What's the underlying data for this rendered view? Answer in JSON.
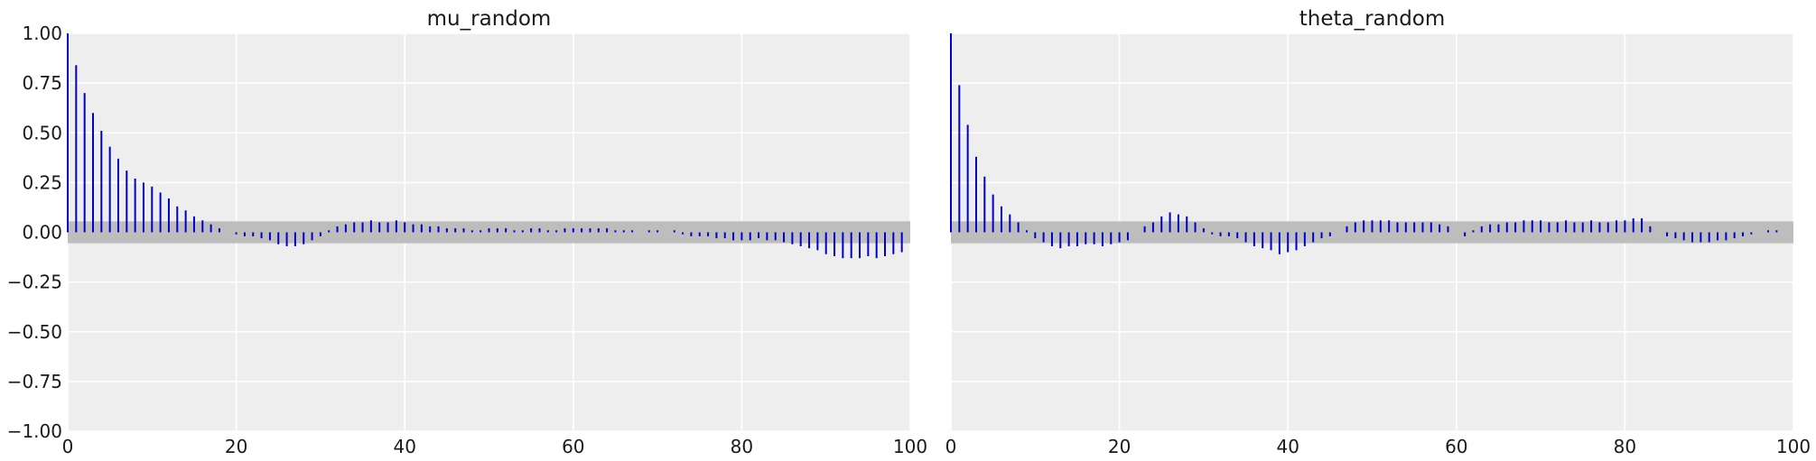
{
  "chart_data": [
    {
      "type": "bar",
      "title": "mu_random",
      "xlabel": "",
      "ylabel": "",
      "xlim": [
        0,
        100
      ],
      "ylim": [
        -1.0,
        1.0
      ],
      "xticks": [
        "0",
        "20",
        "40",
        "60",
        "80",
        "100"
      ],
      "yticks": [
        "1.00",
        "0.75",
        "0.50",
        "0.25",
        "0.00",
        "−0.25",
        "−0.50",
        "−0.75",
        "−1.00"
      ],
      "grid": true,
      "confidence_band": [
        -0.055,
        0.055
      ],
      "colors": {
        "stem": "#0000cc",
        "band": "#bdbdbd",
        "background": "#eeeeee"
      },
      "x": [
        0,
        1,
        2,
        3,
        4,
        5,
        6,
        7,
        8,
        9,
        10,
        11,
        12,
        13,
        14,
        15,
        16,
        17,
        18,
        19,
        20,
        21,
        22,
        23,
        24,
        25,
        26,
        27,
        28,
        29,
        30,
        31,
        32,
        33,
        34,
        35,
        36,
        37,
        38,
        39,
        40,
        41,
        42,
        43,
        44,
        45,
        46,
        47,
        48,
        49,
        50,
        51,
        52,
        53,
        54,
        55,
        56,
        57,
        58,
        59,
        60,
        61,
        62,
        63,
        64,
        65,
        66,
        67,
        68,
        69,
        70,
        71,
        72,
        73,
        74,
        75,
        76,
        77,
        78,
        79,
        80,
        81,
        82,
        83,
        84,
        85,
        86,
        87,
        88,
        89,
        90,
        91,
        92,
        93,
        94,
        95,
        96,
        97,
        98,
        99
      ],
      "values": [
        1.0,
        0.84,
        0.7,
        0.6,
        0.51,
        0.43,
        0.37,
        0.31,
        0.27,
        0.25,
        0.23,
        0.2,
        0.17,
        0.13,
        0.11,
        0.08,
        0.06,
        0.04,
        0.02,
        0.0,
        -0.01,
        -0.02,
        -0.02,
        -0.03,
        -0.04,
        -0.06,
        -0.07,
        -0.07,
        -0.06,
        -0.04,
        -0.02,
        0.01,
        0.03,
        0.04,
        0.05,
        0.05,
        0.06,
        0.05,
        0.05,
        0.06,
        0.05,
        0.04,
        0.04,
        0.03,
        0.03,
        0.02,
        0.02,
        0.02,
        0.01,
        0.01,
        0.02,
        0.02,
        0.02,
        0.01,
        0.01,
        0.02,
        0.02,
        0.01,
        0.01,
        0.02,
        0.02,
        0.02,
        0.02,
        0.02,
        0.02,
        0.01,
        0.01,
        0.01,
        0.0,
        0.01,
        0.01,
        0.0,
        0.01,
        -0.01,
        -0.02,
        -0.02,
        -0.02,
        -0.03,
        -0.03,
        -0.04,
        -0.04,
        -0.04,
        -0.03,
        -0.04,
        -0.04,
        -0.05,
        -0.06,
        -0.07,
        -0.08,
        -0.09,
        -0.11,
        -0.12,
        -0.13,
        -0.13,
        -0.13,
        -0.12,
        -0.13,
        -0.12,
        -0.11,
        -0.1
      ]
    },
    {
      "type": "bar",
      "title": "theta_random",
      "xlabel": "",
      "ylabel": "",
      "xlim": [
        0,
        100
      ],
      "ylim": [
        -1.0,
        1.0
      ],
      "xticks": [
        "0",
        "20",
        "40",
        "60",
        "80",
        "100"
      ],
      "yticks": [],
      "grid": true,
      "confidence_band": [
        -0.055,
        0.055
      ],
      "colors": {
        "stem": "#0000cc",
        "band": "#bdbdbd",
        "background": "#eeeeee"
      },
      "x": [
        0,
        1,
        2,
        3,
        4,
        5,
        6,
        7,
        8,
        9,
        10,
        11,
        12,
        13,
        14,
        15,
        16,
        17,
        18,
        19,
        20,
        21,
        22,
        23,
        24,
        25,
        26,
        27,
        28,
        29,
        30,
        31,
        32,
        33,
        34,
        35,
        36,
        37,
        38,
        39,
        40,
        41,
        42,
        43,
        44,
        45,
        46,
        47,
        48,
        49,
        50,
        51,
        52,
        53,
        54,
        55,
        56,
        57,
        58,
        59,
        60,
        61,
        62,
        63,
        64,
        65,
        66,
        67,
        68,
        69,
        70,
        71,
        72,
        73,
        74,
        75,
        76,
        77,
        78,
        79,
        80,
        81,
        82,
        83,
        84,
        85,
        86,
        87,
        88,
        89,
        90,
        91,
        92,
        93,
        94,
        95,
        96,
        97,
        98,
        99
      ],
      "values": [
        1.0,
        0.74,
        0.54,
        0.38,
        0.28,
        0.19,
        0.13,
        0.09,
        0.05,
        0.01,
        -0.03,
        -0.05,
        -0.07,
        -0.08,
        -0.07,
        -0.07,
        -0.06,
        -0.06,
        -0.07,
        -0.06,
        -0.05,
        -0.04,
        0.0,
        0.03,
        0.05,
        0.08,
        0.1,
        0.09,
        0.08,
        0.05,
        0.02,
        -0.01,
        -0.02,
        -0.02,
        -0.03,
        -0.05,
        -0.07,
        -0.08,
        -0.09,
        -0.11,
        -0.1,
        -0.09,
        -0.07,
        -0.05,
        -0.03,
        -0.02,
        0.0,
        0.03,
        0.05,
        0.06,
        0.06,
        0.06,
        0.06,
        0.05,
        0.05,
        0.05,
        0.05,
        0.05,
        0.04,
        0.03,
        0.0,
        -0.02,
        0.01,
        0.03,
        0.04,
        0.04,
        0.05,
        0.05,
        0.06,
        0.06,
        0.06,
        0.05,
        0.05,
        0.06,
        0.05,
        0.05,
        0.06,
        0.05,
        0.05,
        0.06,
        0.06,
        0.07,
        0.07,
        0.03,
        0.0,
        -0.02,
        -0.03,
        -0.04,
        -0.05,
        -0.05,
        -0.05,
        -0.04,
        -0.04,
        -0.03,
        -0.02,
        -0.01,
        0.0,
        0.01,
        0.01,
        0.0
      ]
    }
  ]
}
